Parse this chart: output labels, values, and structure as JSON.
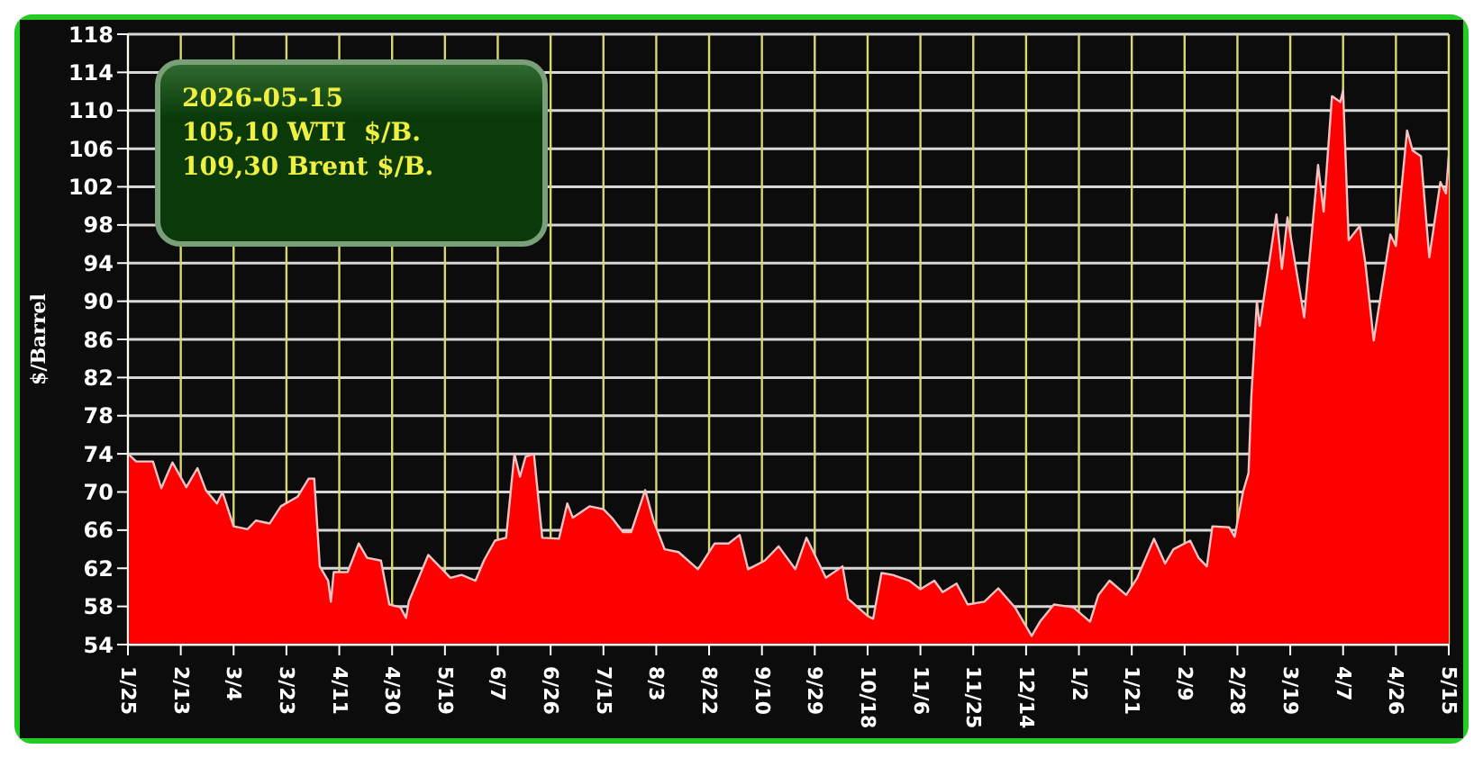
{
  "chart_data": {
    "type": "area",
    "ylabel": "$/Barrel",
    "annotations": [
      "2026-05-15",
      "105,10 WTI  $/B.",
      "109,30 Brent $/B."
    ],
    "x": [
      "2025-01-25",
      "2025-01-28",
      "2025-02-03",
      "2025-02-06",
      "2025-02-10",
      "2025-02-15",
      "2025-02-19",
      "2025-02-22",
      "2025-02-26",
      "2025-02-28",
      "2025-03-04",
      "2025-03-09",
      "2025-03-12",
      "2025-03-17",
      "2025-03-21",
      "2025-03-27",
      "2025-03-31",
      "2025-04-02",
      "2025-04-04",
      "2025-04-07",
      "2025-04-08",
      "2025-04-09",
      "2025-04-14",
      "2025-04-18",
      "2025-04-21",
      "2025-04-26",
      "2025-04-29",
      "2025-05-03",
      "2025-05-05",
      "2025-05-06",
      "2025-05-10",
      "2025-05-13",
      "2025-05-17",
      "2025-05-21",
      "2025-05-25",
      "2025-05-30",
      "2025-06-02",
      "2025-06-06",
      "2025-06-10",
      "2025-06-13",
      "2025-06-15",
      "2025-06-17",
      "2025-06-20",
      "2025-06-23",
      "2025-06-29",
      "2025-07-02",
      "2025-07-04",
      "2025-07-10",
      "2025-07-15",
      "2025-07-18",
      "2025-07-22",
      "2025-07-25",
      "2025-07-30",
      "2025-08-02",
      "2025-08-06",
      "2025-08-11",
      "2025-08-18",
      "2025-08-24",
      "2025-08-29",
      "2025-09-02",
      "2025-09-05",
      "2025-09-11",
      "2025-09-16",
      "2025-09-22",
      "2025-09-26",
      "2025-10-03",
      "2025-10-09",
      "2025-10-11",
      "2025-10-18",
      "2025-10-20",
      "2025-10-23",
      "2025-10-27",
      "2025-11-02",
      "2025-11-06",
      "2025-11-11",
      "2025-11-14",
      "2025-11-19",
      "2025-11-23",
      "2025-11-29",
      "2025-12-04",
      "2025-12-10",
      "2025-12-16",
      "2025-12-19",
      "2025-12-24",
      "2025-12-31",
      "2026-01-06",
      "2026-01-09",
      "2026-01-13",
      "2026-01-19",
      "2026-01-23",
      "2026-01-29",
      "2026-02-02",
      "2026-02-05",
      "2026-02-11",
      "2026-02-14",
      "2026-02-17",
      "2026-02-19",
      "2026-02-25",
      "2026-02-27",
      "2026-03-02",
      "2026-03-04",
      "2026-03-05",
      "2026-03-07",
      "2026-03-08",
      "2026-03-14",
      "2026-03-16",
      "2026-03-18",
      "2026-03-24",
      "2026-03-29",
      "2026-03-31",
      "2026-04-03",
      "2026-04-06",
      "2026-04-07",
      "2026-04-09",
      "2026-04-13",
      "2026-04-15",
      "2026-04-18",
      "2026-04-24",
      "2026-04-26",
      "2026-04-30",
      "2026-05-02",
      "2026-05-05",
      "2026-05-08",
      "2026-05-12",
      "2026-05-14",
      "2026-05-15"
    ],
    "series": [
      {
        "color": "#ff0000",
        "values": [
          74,
          73.2,
          73.2,
          70.4,
          73.1,
          70.5,
          72.5,
          70.2,
          68.8,
          70,
          66.4,
          66.1,
          67,
          66.7,
          68.5,
          69.5,
          71.4,
          71.4,
          62.2,
          60.7,
          58.5,
          61.6,
          61.6,
          64.6,
          63.1,
          62.8,
          58.2,
          57.9,
          56.8,
          58.5,
          61.3,
          63.4,
          62.2,
          61,
          61.3,
          60.7,
          62.8,
          64.9,
          65.2,
          74,
          71.6,
          73.7,
          74,
          65.2,
          65.1,
          68.8,
          67.3,
          68.5,
          68.2,
          67.3,
          65.8,
          65.8,
          70.2,
          67,
          64,
          63.7,
          61.9,
          64.6,
          64.6,
          65.5,
          61.9,
          62.8,
          64.3,
          61.9,
          65.2,
          61,
          62.2,
          58.8,
          57,
          56.7,
          61.5,
          61.3,
          60.7,
          59.8,
          60.7,
          59.5,
          60.4,
          58.2,
          58.5,
          59.9,
          57.9,
          54.9,
          56.4,
          58.2,
          57.9,
          56.4,
          59.2,
          60.7,
          59.2,
          61,
          65.1,
          62.5,
          64,
          64.9,
          63.1,
          62.2,
          66.4,
          66.3,
          65.3,
          70,
          72,
          80,
          90,
          87.4,
          99.1,
          93.4,
          98.8,
          88.3,
          104.3,
          99.4,
          111.5,
          110.9,
          112.1,
          96.4,
          97.9,
          94,
          85.9,
          97,
          95.8,
          107.9,
          105.8,
          105.2,
          94.6,
          102.5,
          101.3,
          105.2
        ]
      }
    ],
    "xlim": [
      "2025-01-25",
      "2026-05-15"
    ],
    "xticks": [
      {
        "value": "2025-01-25",
        "label": "1/25"
      },
      {
        "value": "2025-02-13",
        "label": "2/13"
      },
      {
        "value": "2025-03-04",
        "label": "3/4"
      },
      {
        "value": "2025-03-23",
        "label": "3/23"
      },
      {
        "value": "2025-04-11",
        "label": "4/11"
      },
      {
        "value": "2025-04-30",
        "label": "4/30"
      },
      {
        "value": "2025-05-19",
        "label": "5/19"
      },
      {
        "value": "2025-06-07",
        "label": "6/7"
      },
      {
        "value": "2025-06-26",
        "label": "6/26"
      },
      {
        "value": "2025-07-15",
        "label": "7/15"
      },
      {
        "value": "2025-08-03",
        "label": "8/3"
      },
      {
        "value": "2025-08-22",
        "label": "8/22"
      },
      {
        "value": "2025-09-10",
        "label": "9/10"
      },
      {
        "value": "2025-09-29",
        "label": "9/29"
      },
      {
        "value": "2025-10-18",
        "label": "10/18"
      },
      {
        "value": "2025-11-06",
        "label": "11/6"
      },
      {
        "value": "2025-11-25",
        "label": "11/25"
      },
      {
        "value": "2025-12-14",
        "label": "12/14"
      },
      {
        "value": "2026-01-02",
        "label": "1/2"
      },
      {
        "value": "2026-01-21",
        "label": "1/21"
      },
      {
        "value": "2026-02-09",
        "label": "2/9"
      },
      {
        "value": "2026-02-28",
        "label": "2/28"
      },
      {
        "value": "2026-03-19",
        "label": "3/19"
      },
      {
        "value": "2026-04-07",
        "label": "4/7"
      },
      {
        "value": "2026-04-26",
        "label": "4/26"
      },
      {
        "value": "2026-05-15",
        "label": "5/15"
      }
    ],
    "ylim": [
      54,
      118
    ],
    "yticks": [
      54,
      58,
      62,
      66,
      70,
      74,
      78,
      82,
      86,
      90,
      94,
      98,
      102,
      106,
      110,
      114,
      118
    ],
    "grid": true,
    "legend": false
  }
}
